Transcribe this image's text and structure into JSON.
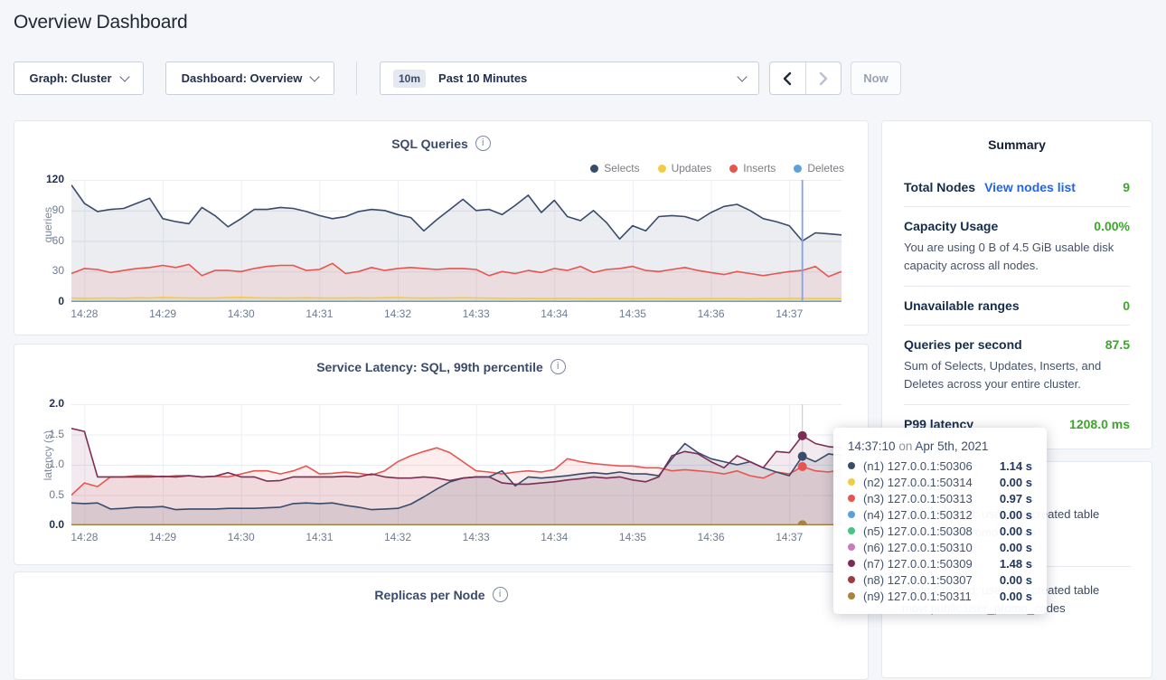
{
  "header": {
    "title": "Overview Dashboard"
  },
  "controls": {
    "graph_label": "Graph: Cluster",
    "dashboard_label": "Dashboard: Overview",
    "range_badge": "10m",
    "range_label": "Past 10 Minutes",
    "now_label": "Now"
  },
  "chart_data": [
    {
      "id": "sql",
      "type": "area",
      "title": "SQL Queries",
      "ylabel": "queries",
      "ylim": [
        0,
        120
      ],
      "yticks": [
        0,
        30,
        60,
        90,
        120
      ],
      "ytick_labels": [
        "0",
        "30",
        "60",
        "90",
        "120"
      ],
      "points": 60,
      "xticks": {
        "labels": [
          "14:28",
          "14:29",
          "14:30",
          "14:31",
          "14:32",
          "14:33",
          "14:34",
          "14:35",
          "14:36",
          "14:37"
        ],
        "indices": [
          1,
          7,
          13,
          19,
          25,
          31,
          37,
          43,
          49,
          55
        ]
      },
      "legend": [
        "Selects",
        "Updates",
        "Inserts",
        "Deletes"
      ],
      "crosshair": {
        "index": 56,
        "color": "#7FA2EF",
        "width": 1.8,
        "dots": []
      },
      "series": [
        {
          "name": "Selects",
          "color": "#394B6B",
          "fill": "rgba(57,75,107,0.10)",
          "values": [
            115,
            97,
            89,
            91,
            92,
            97,
            102,
            82,
            79,
            77,
            93,
            85,
            74,
            82,
            91,
            91,
            93,
            92,
            89,
            85,
            82,
            84,
            89,
            91,
            90,
            86,
            83,
            70,
            81,
            91,
            101,
            90,
            91,
            86,
            95,
            105,
            88,
            100,
            84,
            80,
            90,
            78,
            62,
            75,
            70,
            84,
            85,
            84,
            80,
            88,
            94,
            96,
            90,
            82,
            79,
            75,
            60,
            68,
            67,
            66
          ]
        },
        {
          "name": "Inserts",
          "color": "#E8554F",
          "fill": "rgba(232,85,79,0.10)",
          "values": [
            28,
            33,
            32,
            29,
            31,
            33,
            34,
            36,
            34,
            37,
            26,
            31,
            31,
            30,
            33,
            35,
            36,
            36,
            31,
            32,
            38,
            28,
            30,
            34,
            31,
            33,
            34,
            33,
            32,
            33,
            33,
            32,
            26,
            30,
            28,
            31,
            29,
            33,
            31,
            35,
            29,
            32,
            33,
            35,
            31,
            30,
            32,
            34,
            31,
            29,
            27,
            30,
            28,
            26,
            28,
            30,
            31,
            35,
            25,
            30
          ]
        },
        {
          "name": "Updates",
          "color": "#F3CB46",
          "fill": "rgba(243,203,70,0.18)",
          "values": [
            4,
            3.5,
            3.8,
            4,
            3.6,
            4.2,
            4,
            4.5,
            4.2,
            4,
            3.8,
            4,
            4.4,
            4.6,
            4.2,
            4,
            3.9,
            4,
            4.2,
            4,
            3.8,
            4,
            4.1,
            4,
            4.2,
            4.4,
            4,
            3.8,
            3.9,
            4,
            4.2,
            4,
            3.8,
            3.6,
            3.5,
            3.6,
            3.4,
            3.5,
            3.6,
            3.4,
            3.3,
            3.5,
            3.4,
            3.3,
            3.4,
            3.5,
            3.3,
            3.2,
            3.3,
            3.4,
            3.5,
            3.3,
            3.2,
            3.4,
            3.3,
            3.5,
            3.6,
            3.4,
            3.5,
            3.4
          ]
        },
        {
          "name": "Deletes",
          "color": "#5CA1DB",
          "flat": 0.6
        }
      ]
    },
    {
      "id": "latency",
      "type": "line",
      "title": "Service Latency: SQL, 99th percentile",
      "ylabel": "latency (s)",
      "ylim": [
        0,
        2
      ],
      "yticks": [
        0,
        0.5,
        1,
        1.5,
        2
      ],
      "ytick_labels": [
        "0.0",
        "0.5",
        "1.0",
        "1.5",
        "2.0"
      ],
      "points": 60,
      "xticks": {
        "labels": [
          "14:28",
          "14:29",
          "14:30",
          "14:31",
          "14:32",
          "14:33",
          "14:34",
          "14:35",
          "14:36",
          "14:37"
        ],
        "indices": [
          1,
          7,
          13,
          19,
          25,
          31,
          37,
          43,
          49,
          55
        ]
      },
      "crosshair": {
        "index": 56,
        "color": "#C9CFDA",
        "width": 1.2,
        "dots": [
          "n7",
          "n1",
          "n3",
          "n9"
        ]
      },
      "series": [
        {
          "name": "n2",
          "color": "#F3CB46",
          "flat": 0.01
        },
        {
          "name": "n4",
          "color": "#5BA0DA",
          "flat": 0.01
        },
        {
          "name": "n5",
          "color": "#45C67F",
          "flat": 0.01
        },
        {
          "name": "n6",
          "color": "#C97CBE",
          "flat": 0.01
        },
        {
          "name": "n8",
          "color": "#9C3B42",
          "flat": 0.01
        },
        {
          "name": "n3",
          "color": "#E8554F",
          "fill": "rgba(232,85,79,0.10)",
          "values": [
            0.5,
            0.7,
            0.64,
            0.8,
            0.8,
            0.82,
            0.82,
            0.8,
            0.82,
            0.82,
            0.8,
            0.81,
            0.8,
            0.85,
            0.9,
            0.9,
            0.85,
            0.9,
            0.98,
            0.85,
            0.86,
            0.88,
            0.86,
            0.83,
            0.9,
            1.05,
            1.15,
            1.22,
            1.28,
            1.2,
            1.05,
            0.9,
            0.88,
            0.85,
            0.88,
            0.9,
            0.88,
            0.92,
            1.1,
            1.05,
            1.02,
            1.0,
            0.98,
            0.98,
            0.95,
            0.95,
            0.9,
            0.92,
            0.9,
            0.88,
            0.85,
            0.9,
            0.82,
            0.78,
            0.88,
            0.85,
            0.97,
            0.9,
            0.88,
            0.92
          ]
        },
        {
          "name": "n1",
          "color": "#394B6B",
          "fill": "rgba(57,75,107,0.12)",
          "values": [
            0.37,
            0.36,
            0.37,
            0.27,
            0.28,
            0.3,
            0.3,
            0.31,
            0.26,
            0.27,
            0.27,
            0.27,
            0.28,
            0.28,
            0.28,
            0.29,
            0.3,
            0.36,
            0.37,
            0.36,
            0.37,
            0.33,
            0.3,
            0.26,
            0.27,
            0.28,
            0.35,
            0.47,
            0.6,
            0.72,
            0.78,
            0.8,
            0.8,
            0.9,
            0.65,
            0.8,
            0.78,
            0.8,
            0.82,
            0.85,
            0.87,
            0.85,
            0.88,
            0.85,
            0.85,
            0.82,
            1.1,
            1.35,
            1.2,
            1.1,
            1.05,
            1.0,
            1.05,
            0.95,
            0.88,
            0.82,
            1.14,
            1.05,
            1.18,
            1.15
          ]
        },
        {
          "name": "n7",
          "color": "#7D2D55",
          "fill": "rgba(125,45,85,0.10)",
          "values": [
            1.6,
            1.55,
            0.8,
            0.8,
            0.8,
            0.8,
            0.8,
            0.81,
            0.8,
            0.82,
            0.8,
            0.81,
            0.87,
            0.8,
            0.8,
            0.73,
            0.74,
            0.8,
            0.8,
            0.8,
            0.8,
            0.81,
            0.8,
            0.85,
            0.8,
            0.78,
            0.78,
            0.8,
            0.78,
            0.74,
            0.78,
            0.8,
            0.8,
            0.7,
            0.68,
            0.68,
            0.7,
            0.72,
            0.75,
            0.77,
            0.8,
            0.78,
            0.8,
            0.75,
            0.72,
            0.8,
            1.15,
            1.22,
            1.18,
            1.05,
            0.95,
            1.15,
            1.05,
            0.95,
            1.22,
            1.2,
            1.48,
            1.35,
            1.3,
            1.28
          ]
        },
        {
          "name": "n9",
          "color": "#A8823F",
          "flat": 0.01
        }
      ]
    },
    {
      "id": "replicas",
      "type": "line",
      "title": "Replicas per Node"
    }
  ],
  "summary": {
    "title": "Summary",
    "rows": [
      {
        "label": "Total Nodes",
        "link": "View nodes list",
        "value": "9"
      },
      {
        "label": "Capacity Usage",
        "value": "0.00%",
        "desc": "You are using 0 B of 4.5 GiB usable disk capacity across all nodes."
      },
      {
        "label": "Unavailable ranges",
        "value": "0"
      },
      {
        "label": "Queries per second",
        "value": "87.5",
        "desc": "Sum of Selects, Updates, Inserts, and Deletes across your entire cluster."
      },
      {
        "label": "P99 latency",
        "value": "1208.0 ms"
      }
    ]
  },
  "events": {
    "title": "Events",
    "items": [
      {
        "lines": [
          "Table Created: user root created table",
          "movr.public.promo_codes"
        ]
      },
      {
        "lines": [
          "Table Created: user root created table",
          "movr.public.user_promo_codes"
        ]
      }
    ]
  },
  "tooltip": {
    "time": "14:37:10",
    "conjunction": "on",
    "date": "Apr 5th, 2021",
    "rows": [
      {
        "dot": "#394B6B",
        "label": "(n1) 127.0.0.1:50306",
        "value": "1.14 s"
      },
      {
        "dot": "#F3CB46",
        "label": "(n2) 127.0.0.1:50314",
        "value": "0.00 s"
      },
      {
        "dot": "#E8554F",
        "label": "(n3) 127.0.0.1:50313",
        "value": "0.97 s"
      },
      {
        "dot": "#5BA0DA",
        "label": "(n4) 127.0.0.1:50312",
        "value": "0.00 s"
      },
      {
        "dot": "#45C67F",
        "label": "(n5) 127.0.0.1:50308",
        "value": "0.00 s"
      },
      {
        "dot": "#C97CBE",
        "label": "(n6) 127.0.0.1:50310",
        "value": "0.00 s"
      },
      {
        "dot": "#7D2D55",
        "label": "(n7) 127.0.0.1:50309",
        "value": "1.48 s"
      },
      {
        "dot": "#9C3B42",
        "label": "(n8) 127.0.0.1:50307",
        "value": "0.00 s"
      },
      {
        "dot": "#A8823F",
        "label": "(n9) 127.0.0.1:50311",
        "value": "0.00 s"
      }
    ]
  }
}
